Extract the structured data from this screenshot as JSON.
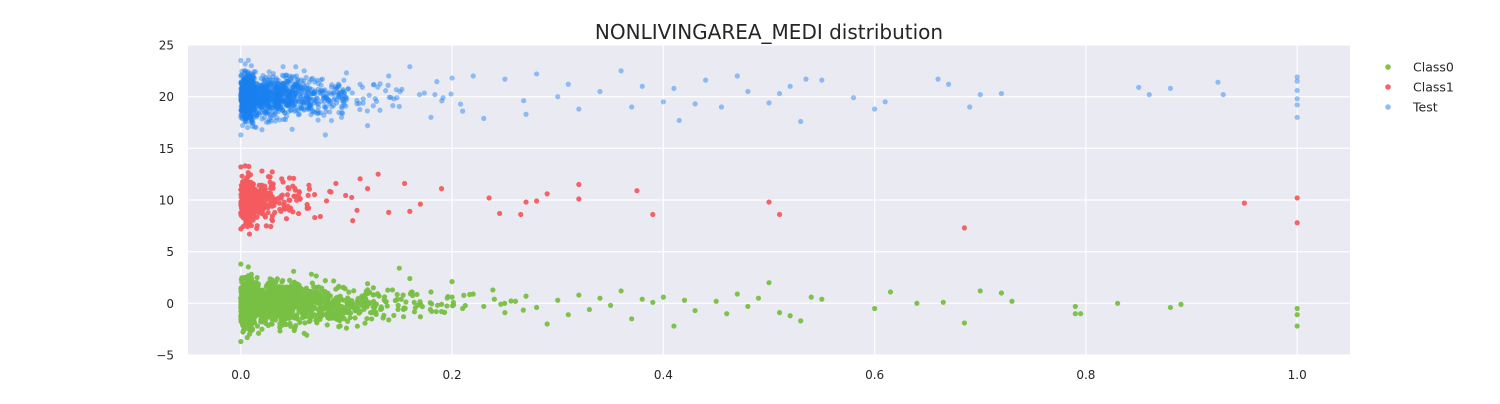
{
  "chart_data": {
    "type": "scatter",
    "title": "NONLIVINGAREA_MEDI distribution",
    "xlabel": "",
    "ylabel": "",
    "xlim": [
      -0.05,
      1.05
    ],
    "ylim": [
      -5,
      25
    ],
    "xticks": [
      0.0,
      0.2,
      0.4,
      0.6,
      0.8,
      1.0
    ],
    "xtick_labels": [
      "0.0",
      "0.2",
      "0.4",
      "0.6",
      "0.8",
      "1.0"
    ],
    "yticks": [
      -5,
      0,
      5,
      10,
      15,
      20,
      25
    ],
    "ytick_labels": [
      "−5",
      "0",
      "5",
      "10",
      "15",
      "20",
      "25"
    ],
    "grid": true,
    "legend_position": "top-right",
    "series": [
      {
        "name": "Class0",
        "color": "#78c043",
        "opacity": 0.95,
        "band_center": 0,
        "points": [
          [
            0.0,
            3.8
          ],
          [
            0.0,
            -3.7
          ],
          [
            0.0,
            0.5
          ],
          [
            0.0,
            -1.2
          ],
          [
            0.01,
            2.8
          ],
          [
            0.02,
            -2.5
          ],
          [
            0.03,
            1.5
          ],
          [
            0.05,
            3.1
          ],
          [
            0.06,
            -2.9
          ],
          [
            0.08,
            2.2
          ],
          [
            0.1,
            -2.4
          ],
          [
            0.12,
            1.9
          ],
          [
            0.14,
            -1.6
          ],
          [
            0.15,
            3.4
          ],
          [
            0.16,
            2.4
          ],
          [
            0.17,
            -1.3
          ],
          [
            0.18,
            1.1
          ],
          [
            0.19,
            -0.8
          ],
          [
            0.2,
            0.6
          ],
          [
            0.2,
            2.1
          ],
          [
            0.21,
            -0.5
          ],
          [
            0.22,
            0.9
          ],
          [
            0.23,
            -0.3
          ],
          [
            0.24,
            0.4
          ],
          [
            0.25,
            -0.9
          ],
          [
            0.26,
            0.2
          ],
          [
            0.27,
            0.7
          ],
          [
            0.28,
            -0.4
          ],
          [
            0.29,
            -2.0
          ],
          [
            0.3,
            0.3
          ],
          [
            0.31,
            -1.1
          ],
          [
            0.32,
            0.8
          ],
          [
            0.33,
            -0.6
          ],
          [
            0.34,
            0.5
          ],
          [
            0.35,
            -0.2
          ],
          [
            0.36,
            1.2
          ],
          [
            0.37,
            -1.5
          ],
          [
            0.38,
            0.4
          ],
          [
            0.39,
            0.1
          ],
          [
            0.4,
            0.6
          ],
          [
            0.41,
            -2.2
          ],
          [
            0.42,
            0.3
          ],
          [
            0.43,
            -0.7
          ],
          [
            0.45,
            0.2
          ],
          [
            0.46,
            -1.0
          ],
          [
            0.47,
            0.9
          ],
          [
            0.48,
            -0.3
          ],
          [
            0.49,
            0.5
          ],
          [
            0.5,
            2.0
          ],
          [
            0.51,
            -0.9
          ],
          [
            0.52,
            -1.2
          ],
          [
            0.53,
            -1.7
          ],
          [
            0.54,
            0.6
          ],
          [
            0.55,
            0.4
          ],
          [
            0.6,
            -0.5
          ],
          [
            0.615,
            1.1
          ],
          [
            0.64,
            0.0
          ],
          [
            0.665,
            0.1
          ],
          [
            0.685,
            -1.9
          ],
          [
            0.7,
            1.2
          ],
          [
            0.72,
            1.0
          ],
          [
            0.73,
            0.2
          ],
          [
            0.79,
            -0.3
          ],
          [
            0.79,
            -1.0
          ],
          [
            0.795,
            -1.0
          ],
          [
            0.83,
            0.0
          ],
          [
            0.88,
            -0.4
          ],
          [
            0.89,
            -0.1
          ],
          [
            1.0,
            -0.5
          ],
          [
            1.0,
            -1.1
          ],
          [
            1.0,
            -2.2
          ]
        ]
      },
      {
        "name": "Class1",
        "color": "#f35b5f",
        "opacity": 0.95,
        "band_center": 10,
        "points": [
          [
            0.0,
            13.2
          ],
          [
            0.0,
            7.2
          ],
          [
            0.0,
            11.0
          ],
          [
            0.0,
            8.7
          ],
          [
            0.02,
            12.8
          ],
          [
            0.03,
            8.0
          ],
          [
            0.05,
            12.1
          ],
          [
            0.07,
            8.3
          ],
          [
            0.09,
            11.6
          ],
          [
            0.11,
            9.0
          ],
          [
            0.12,
            11.1
          ],
          [
            0.13,
            12.5
          ],
          [
            0.14,
            8.8
          ],
          [
            0.155,
            11.6
          ],
          [
            0.16,
            8.9
          ],
          [
            0.17,
            9.6
          ],
          [
            0.19,
            11.1
          ],
          [
            0.235,
            10.2
          ],
          [
            0.245,
            8.7
          ],
          [
            0.265,
            8.6
          ],
          [
            0.27,
            9.8
          ],
          [
            0.28,
            9.9
          ],
          [
            0.29,
            10.6
          ],
          [
            0.32,
            11.5
          ],
          [
            0.32,
            10.1
          ],
          [
            0.375,
            10.9
          ],
          [
            0.39,
            8.6
          ],
          [
            0.5,
            9.8
          ],
          [
            0.51,
            8.6
          ],
          [
            0.685,
            7.3
          ],
          [
            0.95,
            9.7
          ],
          [
            1.0,
            10.2
          ],
          [
            1.0,
            7.8
          ]
        ]
      },
      {
        "name": "Test",
        "color": "#1a80f0",
        "opacity": 0.45,
        "band_center": 20,
        "points": [
          [
            0.0,
            23.5
          ],
          [
            0.0,
            16.3
          ],
          [
            0.0,
            18.0
          ],
          [
            0.0,
            22.0
          ],
          [
            0.01,
            23.0
          ],
          [
            0.02,
            16.8
          ],
          [
            0.04,
            22.9
          ],
          [
            0.06,
            22.5
          ],
          [
            0.08,
            16.3
          ],
          [
            0.1,
            22.3
          ],
          [
            0.12,
            17.2
          ],
          [
            0.14,
            22.0
          ],
          [
            0.16,
            22.9
          ],
          [
            0.18,
            18.0
          ],
          [
            0.2,
            21.8
          ],
          [
            0.21,
            18.6
          ],
          [
            0.22,
            22.0
          ],
          [
            0.23,
            17.9
          ],
          [
            0.25,
            21.7
          ],
          [
            0.27,
            18.3
          ],
          [
            0.28,
            22.2
          ],
          [
            0.3,
            20.0
          ],
          [
            0.31,
            21.2
          ],
          [
            0.32,
            18.8
          ],
          [
            0.34,
            20.5
          ],
          [
            0.36,
            22.5
          ],
          [
            0.37,
            19.0
          ],
          [
            0.38,
            21.0
          ],
          [
            0.4,
            19.5
          ],
          [
            0.41,
            20.8
          ],
          [
            0.415,
            17.7
          ],
          [
            0.43,
            19.3
          ],
          [
            0.44,
            21.6
          ],
          [
            0.455,
            19.0
          ],
          [
            0.47,
            22.0
          ],
          [
            0.48,
            20.5
          ],
          [
            0.5,
            19.4
          ],
          [
            0.51,
            20.3
          ],
          [
            0.52,
            21.0
          ],
          [
            0.53,
            17.6
          ],
          [
            0.535,
            21.7
          ],
          [
            0.55,
            21.6
          ],
          [
            0.58,
            19.9
          ],
          [
            0.6,
            18.8
          ],
          [
            0.61,
            19.5
          ],
          [
            0.66,
            21.7
          ],
          [
            0.67,
            21.2
          ],
          [
            0.69,
            19.0
          ],
          [
            0.7,
            20.2
          ],
          [
            0.72,
            20.3
          ],
          [
            0.85,
            20.9
          ],
          [
            0.86,
            20.2
          ],
          [
            0.88,
            20.8
          ],
          [
            0.925,
            21.4
          ],
          [
            0.93,
            20.2
          ],
          [
            1.0,
            21.9
          ],
          [
            1.0,
            21.5
          ],
          [
            1.0,
            20.6
          ],
          [
            1.0,
            19.8
          ],
          [
            1.0,
            19.2
          ],
          [
            1.0,
            18.0
          ]
        ]
      }
    ]
  }
}
